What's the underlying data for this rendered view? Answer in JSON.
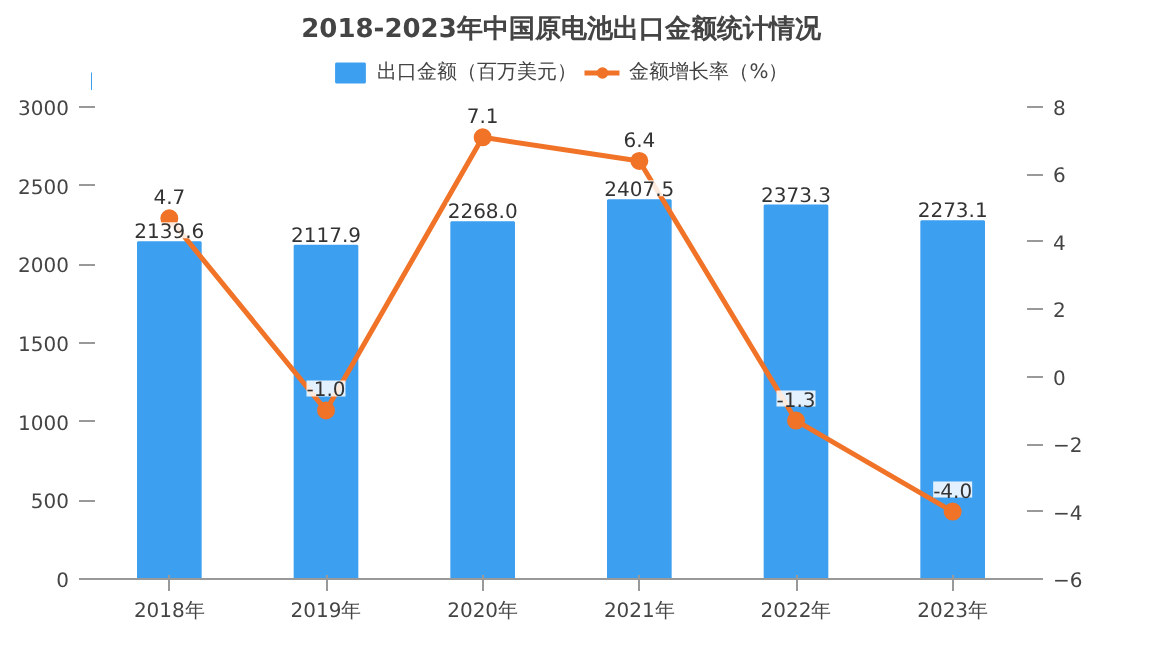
{
  "chart_data": {
    "type": "bar",
    "title": "2018-2023年中国原电池出口金额统计情况",
    "categories": [
      "2018年",
      "2019年",
      "2020年",
      "2021年",
      "2022年",
      "2023年"
    ],
    "series": [
      {
        "name": "出口金额（百万美元）",
        "color": "#3d9ff0",
        "values": [
          2139.6,
          2117.9,
          2268,
          2407.5,
          2373.3,
          2273.1
        ],
        "value_labels": [
          "2139.6",
          "2117.9",
          "2268.0",
          "2407.5",
          "2373.3",
          "2273.1"
        ]
      },
      {
        "name": "金额增长率（%）",
        "type": "line",
        "axis": "y2",
        "color": "#f07328",
        "values": [
          4.7,
          -1,
          7.1,
          6.4,
          -1.3,
          -4
        ],
        "value_labels": [
          "4.7",
          "-1.0",
          "7.1",
          "6.4",
          "-1.3",
          "-4.0"
        ]
      }
    ],
    "ylim": [
      0,
      3000
    ],
    "yticks": [
      0,
      500,
      1000,
      1500,
      2000,
      2500,
      3000
    ],
    "y2lim": [
      -6,
      8
    ],
    "y2ticks": [
      -6,
      -4,
      -2,
      0,
      2,
      4,
      6,
      8
    ],
    "legend": "top",
    "marker": "circle",
    "line_style": "solid"
  }
}
